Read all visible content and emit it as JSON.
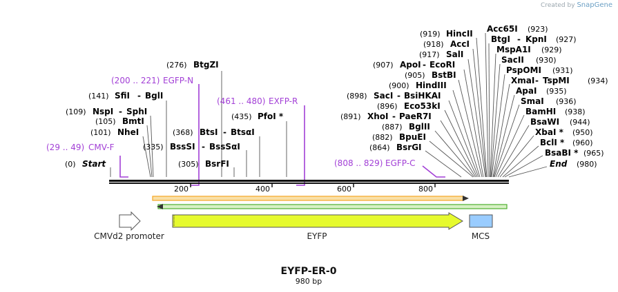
{
  "credit": {
    "prefix": "Created by",
    "brand": "SnapGene"
  },
  "map": {
    "title": "EYFP-ER-0",
    "length_label": "980 bp",
    "ticks": [
      "200",
      "400",
      "600",
      "800"
    ]
  },
  "sites_left": [
    {
      "name": "BtgZI",
      "pos": "(276)"
    },
    {
      "name": "SfiI",
      "pos": "(141)",
      "pair": "BglI"
    },
    {
      "name": "NspI",
      "pos": "(109)",
      "pair": "SphI"
    },
    {
      "name": "BmtI",
      "pos": "(105)"
    },
    {
      "name": "NheI",
      "pos": "(101)"
    },
    {
      "name": "PfoI *",
      "pos": "(435)"
    },
    {
      "name": "BtsI",
      "pos": "(368)",
      "pair": "BtsαI"
    },
    {
      "name": "BssSI",
      "pos": "(335)",
      "pair": "BssSαI"
    },
    {
      "name": "BsrFI",
      "pos": "(305)"
    },
    {
      "name": "Start",
      "pos": "(0)"
    }
  ],
  "sites_right": [
    {
      "name": "HincII",
      "pos": "(919)"
    },
    {
      "name": "AccI",
      "pos": "(918)"
    },
    {
      "name": "SalI",
      "pos": "(917)"
    },
    {
      "name": "ApoI",
      "pos": "(907)",
      "pair": "EcoRI"
    },
    {
      "name": "BstBI",
      "pos": "(905)"
    },
    {
      "name": "HindIII",
      "pos": "(900)"
    },
    {
      "name": "SacI",
      "pos": "(898)",
      "pair": "BsiHKAI"
    },
    {
      "name": "Eco53kI",
      "pos": "(896)"
    },
    {
      "name": "XhoI",
      "pos": "(891)",
      "pair": "PaeR7I"
    },
    {
      "name": "BglII",
      "pos": "(887)"
    },
    {
      "name": "BpuEI",
      "pos": "(882)"
    },
    {
      "name": "BsrGI",
      "pos": "(864)"
    },
    {
      "name": "Acc65I",
      "pos": "(923)"
    },
    {
      "name": "BtgI",
      "pos": "(927)",
      "pair": "KpnI"
    },
    {
      "name": "MspA1I",
      "pos": "(929)"
    },
    {
      "name": "SacII",
      "pos": "(930)"
    },
    {
      "name": "PspOMI",
      "pos": "(931)"
    },
    {
      "name": "XmaI",
      "pos": "(934)",
      "pair": "TspMI"
    },
    {
      "name": "ApaI",
      "pos": "(935)"
    },
    {
      "name": "SmaI",
      "pos": "(936)"
    },
    {
      "name": "BamHI",
      "pos": "(938)"
    },
    {
      "name": "BsaWI",
      "pos": "(944)"
    },
    {
      "name": "XbaI *",
      "pos": "(950)"
    },
    {
      "name": "BclI *",
      "pos": "(960)"
    },
    {
      "name": "BsaBI *",
      "pos": "(965)"
    },
    {
      "name": "End",
      "pos": "(980)"
    }
  ],
  "primers": [
    {
      "name": "CMV-F",
      "range": "(29 .. 49)"
    },
    {
      "name": "EGFP-N",
      "range": "(200 .. 221)"
    },
    {
      "name": "EXFP-R",
      "range": "(461 .. 480)"
    },
    {
      "name": "EGFP-C",
      "range": "(808 .. 829)"
    }
  ],
  "features": [
    {
      "name": "CMVd2 promoter",
      "color": "#ffffff"
    },
    {
      "name": "EYFP",
      "color": "#e6fa2e"
    },
    {
      "name": "MCS",
      "color": "#99ccff"
    }
  ],
  "orf_colors": {
    "forward": "#f5a623",
    "reverse": "#4caf2f"
  }
}
